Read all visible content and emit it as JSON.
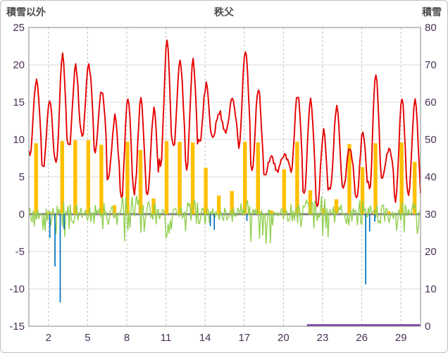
{
  "header": {
    "left_axis_title": "積雪以外",
    "chart_title": "秩父",
    "right_axis_title": "積雪"
  },
  "colors": {
    "header_text": "#4d4d4d",
    "tick_text": "#4a3155",
    "h_grid": "#d9d9d9",
    "v_grid": "#bdbdbd",
    "zero_line": "#7f7f7f",
    "plot_border": "#9a9a9a",
    "frame_border": "#bfbfbf",
    "background": "#ffffff"
  },
  "chart_data": {
    "type": "combo-line-bar",
    "title": "秩父",
    "x_axis": {
      "range": [
        1,
        31
      ],
      "ticks": [
        2,
        5,
        8,
        11,
        14,
        17,
        20,
        23,
        26,
        29
      ],
      "gridline_style": "dashed"
    },
    "y_left": {
      "label": "積雪以外",
      "range": [
        -15,
        25
      ],
      "ticks": [
        25,
        20,
        15,
        10,
        5,
        0,
        -5,
        -10,
        -15
      ]
    },
    "y_right": {
      "label": "積雪",
      "range": [
        0,
        80
      ],
      "ticks": [
        80,
        70,
        60,
        50,
        40,
        30,
        20,
        10,
        0
      ]
    },
    "series": [
      {
        "name": "red-line",
        "kind": "daily-cycle-line",
        "axis": "left",
        "color": "#e60000",
        "daily_max": [
          18.0,
          15.5,
          21.5,
          19.8,
          20.2,
          16.5,
          13.0,
          15.8,
          15.2,
          14.0,
          23.2,
          20.3,
          20.5,
          17.3,
          13.8,
          15.3,
          22.0,
          17.0,
          7.5,
          8.0,
          16.0,
          15.5,
          11.0,
          14.5,
          9.0,
          11.0,
          19.0,
          8.5,
          15.2,
          15.0
        ],
        "daily_min": [
          8.0,
          6.0,
          6.5,
          9.0,
          10.5,
          8.5,
          4.5,
          2.0,
          3.0,
          2.5,
          6.5,
          9.0,
          6.0,
          9.5,
          10.5,
          11.0,
          9.0,
          5.5,
          5.5,
          6.0,
          5.5,
          2.5,
          1.0,
          3.0,
          3.5,
          2.0,
          3.0,
          5.0,
          2.0,
          2.5
        ]
      },
      {
        "name": "orange-bars",
        "kind": "bar",
        "axis": "left",
        "color": "#ffc000",
        "daily": [
          9.5,
          0.3,
          9.8,
          9.9,
          9.9,
          9.3,
          1.2,
          9.7,
          8.6,
          2.1,
          9.8,
          9.7,
          9.6,
          6.2,
          2.5,
          3.1,
          9.7,
          9.6,
          0.5,
          6.0,
          9.7,
          3.2,
          0.8,
          2.0,
          9.4,
          6.3,
          9.5,
          0.4,
          9.6,
          7.0
        ]
      },
      {
        "name": "green-line",
        "kind": "noise-line",
        "axis": "left",
        "color": "#92d050",
        "daily_pos": [
          1.5,
          1.0,
          2.0,
          1.5,
          1.0,
          1.5,
          2.0,
          3.0,
          2.5,
          2.0,
          1.5,
          1.0,
          2.0,
          1.0,
          0.8,
          1.0,
          2.0,
          1.5,
          1.0,
          1.0,
          1.5,
          2.0,
          2.5,
          1.5,
          1.0,
          2.0,
          2.5,
          1.5,
          2.0,
          1.5
        ],
        "daily_neg": [
          2.0,
          3.0,
          5.0,
          2.0,
          1.5,
          2.0,
          2.5,
          4.5,
          3.0,
          2.5,
          3.5,
          2.0,
          2.5,
          1.5,
          1.0,
          1.5,
          2.0,
          5.5,
          4.0,
          1.5,
          2.0,
          2.5,
          4.0,
          2.5,
          2.0,
          2.5,
          3.0,
          2.0,
          4.5,
          3.0
        ]
      },
      {
        "name": "blue-needles",
        "kind": "needle",
        "axis": "left",
        "color": "#0070c0",
        "points": [
          [
            2.6,
            -3.2
          ],
          [
            3.0,
            -7.0
          ],
          [
            3.4,
            -11.8
          ],
          [
            3.7,
            -2.0
          ],
          [
            14.9,
            -1.6
          ],
          [
            15.2,
            -2.1
          ],
          [
            17.7,
            -0.9
          ],
          [
            26.8,
            -9.4
          ],
          [
            27.1,
            -2.3
          ],
          [
            27.5,
            -1.0
          ]
        ]
      },
      {
        "name": "purple-line",
        "kind": "line",
        "axis": "right",
        "color": "#7030a0",
        "points": [
          [
            22.3,
            0
          ],
          [
            31,
            0
          ]
        ]
      }
    ]
  }
}
